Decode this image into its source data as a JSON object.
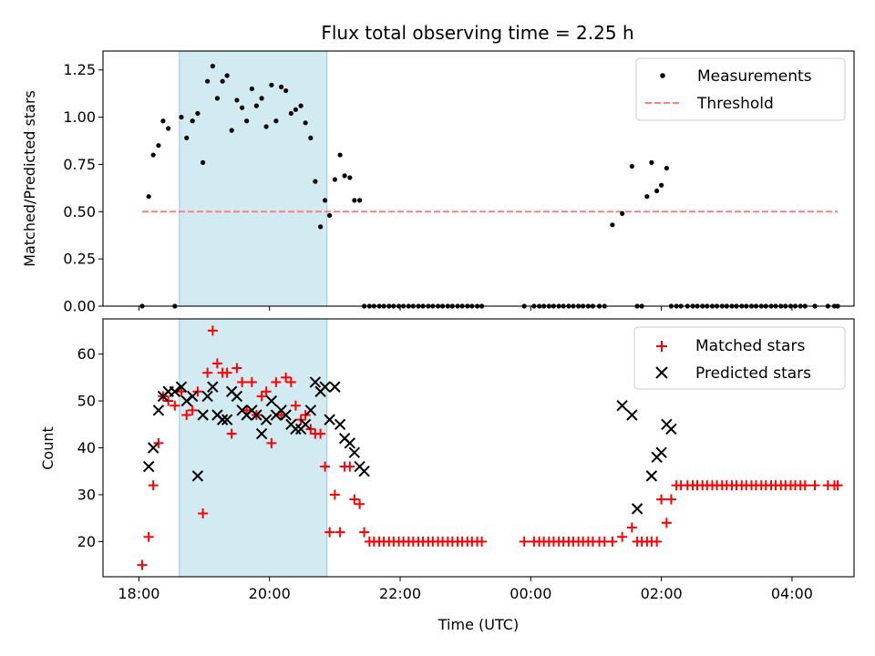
{
  "chart_data": [
    {
      "type": "scatter",
      "title": "Flux total observing time = 2.25 h",
      "xlabel": "",
      "ylabel": "Matched/Predicted stars",
      "x_unit": "hours since 18:00 UTC",
      "xlim": [
        -0.55,
        10.95
      ],
      "ylim": [
        0.0,
        1.35
      ],
      "yticks": [
        0.0,
        0.25,
        0.5,
        0.75,
        1.0,
        1.25
      ],
      "ytick_labels": [
        "0.00",
        "0.25",
        "0.50",
        "0.75",
        "1.00",
        "1.25"
      ],
      "highlight_span": {
        "x0": 0.62,
        "x1": 2.88,
        "color": "#add8e6"
      },
      "legend_position": "top-right",
      "legend": [
        "Measurements",
        "Threshold"
      ],
      "series": [
        {
          "name": "Measurements",
          "color": "#000000",
          "marker": "dot",
          "x": [
            0.05,
            0.15,
            0.22,
            0.3,
            0.37,
            0.45,
            0.55,
            0.65,
            0.73,
            0.82,
            0.9,
            0.98,
            1.05,
            1.13,
            1.2,
            1.28,
            1.35,
            1.42,
            1.5,
            1.58,
            1.65,
            1.73,
            1.8,
            1.88,
            1.95,
            2.03,
            2.1,
            2.18,
            2.25,
            2.33,
            2.4,
            2.48,
            2.55,
            2.63,
            2.7,
            2.78,
            2.85,
            2.92,
            3.0,
            3.08,
            3.15,
            3.23,
            3.3,
            3.38,
            3.45,
            3.53,
            3.6,
            3.68,
            3.75,
            3.83,
            3.9,
            3.98,
            4.05,
            4.13,
            4.2,
            4.28,
            4.35,
            4.43,
            4.5,
            4.58,
            4.65,
            4.73,
            4.8,
            4.88,
            4.95,
            5.03,
            5.1,
            5.18,
            5.25,
            5.9,
            6.05,
            6.13,
            6.2,
            6.28,
            6.35,
            6.43,
            6.5,
            6.58,
            6.65,
            6.73,
            6.8,
            6.88,
            6.95,
            7.05,
            7.13,
            7.25,
            7.4,
            7.55,
            7.63,
            7.7,
            7.78,
            7.85,
            7.93,
            8.0,
            8.08,
            8.15,
            8.23,
            8.3,
            8.4,
            8.48,
            8.55,
            8.63,
            8.7,
            8.78,
            8.85,
            8.93,
            9.0,
            9.08,
            9.15,
            9.23,
            9.3,
            9.38,
            9.45,
            9.53,
            9.6,
            9.68,
            9.75,
            9.83,
            9.9,
            9.98,
            10.05,
            10.13,
            10.2,
            10.35,
            10.55,
            10.65,
            10.7
          ],
          "y": [
            0.0,
            0.58,
            0.8,
            0.85,
            0.98,
            0.94,
            0.0,
            1.0,
            0.89,
            0.98,
            1.02,
            0.76,
            1.19,
            1.27,
            1.1,
            1.19,
            1.22,
            0.93,
            1.09,
            1.05,
            0.98,
            1.15,
            1.06,
            1.1,
            0.95,
            1.17,
            0.98,
            1.16,
            1.14,
            1.02,
            1.04,
            1.06,
            0.97,
            0.89,
            0.66,
            0.42,
            0.56,
            0.48,
            0.67,
            0.8,
            0.69,
            0.68,
            0.56,
            0.56,
            0.0,
            0.0,
            0.0,
            0.0,
            0.0,
            0.0,
            0.0,
            0.0,
            0.0,
            0.0,
            0.0,
            0.0,
            0.0,
            0.0,
            0.0,
            0.0,
            0.0,
            0.0,
            0.0,
            0.0,
            0.0,
            0.0,
            0.0,
            0.0,
            0.0,
            0.0,
            0.0,
            0.0,
            0.0,
            0.0,
            0.0,
            0.0,
            0.0,
            0.0,
            0.0,
            0.0,
            0.0,
            0.0,
            0.0,
            0.0,
            0.0,
            0.43,
            0.49,
            0.74,
            0.0,
            0.0,
            0.58,
            0.76,
            0.61,
            0.64,
            0.73,
            0.0,
            0.0,
            0.0,
            0.0,
            0.0,
            0.0,
            0.0,
            0.0,
            0.0,
            0.0,
            0.0,
            0.0,
            0.0,
            0.0,
            0.0,
            0.0,
            0.0,
            0.0,
            0.0,
            0.0,
            0.0,
            0.0,
            0.0,
            0.0,
            0.0,
            0.0,
            0.0,
            0.0,
            0.0,
            0.0,
            0.0,
            0.0
          ]
        },
        {
          "name": "Threshold",
          "color": "#ff7f7f",
          "style": "dashed",
          "x": [
            0.05,
            10.7
          ],
          "y": [
            0.5,
            0.5
          ]
        }
      ]
    },
    {
      "type": "scatter",
      "title": "",
      "xlabel": "Time (UTC)",
      "ylabel": "Count",
      "x_unit": "hours since 18:00 UTC",
      "xlim": [
        -0.55,
        10.95
      ],
      "ylim": [
        12.5,
        67.5
      ],
      "yticks": [
        20,
        30,
        40,
        50,
        60
      ],
      "ytick_labels": [
        "20",
        "30",
        "40",
        "50",
        "60"
      ],
      "xticks": [
        0,
        2,
        4,
        6,
        8,
        10
      ],
      "xtick_labels": [
        "18:00",
        "20:00",
        "22:00",
        "00:00",
        "02:00",
        "04:00"
      ],
      "highlight_span": {
        "x0": 0.62,
        "x1": 2.88,
        "color": "#add8e6"
      },
      "legend_position": "top-right",
      "legend": [
        "Matched stars",
        "Predicted stars"
      ],
      "series": [
        {
          "name": "Matched stars",
          "color": "#ff0000",
          "marker": "plus",
          "x": [
            0.05,
            0.15,
            0.22,
            0.3,
            0.37,
            0.45,
            0.55,
            0.65,
            0.73,
            0.82,
            0.9,
            0.98,
            1.05,
            1.13,
            1.2,
            1.28,
            1.35,
            1.42,
            1.5,
            1.58,
            1.65,
            1.73,
            1.8,
            1.88,
            1.95,
            2.03,
            2.1,
            2.18,
            2.25,
            2.33,
            2.4,
            2.48,
            2.55,
            2.63,
            2.7,
            2.78,
            2.85,
            2.92,
            3.0,
            3.08,
            3.15,
            3.23,
            3.3,
            3.38,
            3.45,
            3.53,
            3.6,
            3.68,
            3.75,
            3.83,
            3.9,
            3.98,
            4.05,
            4.13,
            4.2,
            4.28,
            4.35,
            4.43,
            4.5,
            4.58,
            4.65,
            4.73,
            4.8,
            4.88,
            4.95,
            5.03,
            5.1,
            5.18,
            5.25,
            5.9,
            6.05,
            6.13,
            6.2,
            6.28,
            6.35,
            6.43,
            6.5,
            6.58,
            6.65,
            6.73,
            6.8,
            6.88,
            6.95,
            7.05,
            7.13,
            7.25,
            7.4,
            7.55,
            7.63,
            7.7,
            7.78,
            7.85,
            7.93,
            8.0,
            8.08,
            8.15,
            8.23,
            8.3,
            8.4,
            8.48,
            8.55,
            8.63,
            8.7,
            8.78,
            8.85,
            8.93,
            9.0,
            9.08,
            9.15,
            9.23,
            9.3,
            9.38,
            9.45,
            9.53,
            9.6,
            9.68,
            9.75,
            9.83,
            9.9,
            9.98,
            10.05,
            10.13,
            10.2,
            10.35,
            10.55,
            10.65,
            10.7
          ],
          "y": [
            15,
            21,
            32,
            41,
            51,
            50,
            49,
            52,
            47,
            48,
            52,
            26,
            56,
            65,
            58,
            56,
            56,
            43,
            57,
            54,
            48,
            54,
            47,
            51,
            52,
            41,
            54,
            47,
            55,
            54,
            49,
            46,
            47,
            44,
            43,
            43,
            36,
            22,
            30,
            22,
            36,
            36,
            29,
            28,
            22,
            20,
            20,
            20,
            20,
            20,
            20,
            20,
            20,
            20,
            20,
            20,
            20,
            20,
            20,
            20,
            20,
            20,
            20,
            20,
            20,
            20,
            20,
            20,
            20,
            20,
            20,
            20,
            20,
            20,
            20,
            20,
            20,
            20,
            20,
            20,
            20,
            20,
            20,
            20,
            20,
            20,
            21,
            23,
            20,
            20,
            20,
            20,
            20,
            29,
            24,
            29,
            32,
            32,
            32,
            32,
            32,
            32,
            32,
            32,
            32,
            32,
            32,
            32,
            32,
            32,
            32,
            32,
            32,
            32,
            32,
            32,
            32,
            32,
            32,
            32,
            32,
            32,
            32,
            32,
            32,
            32,
            32
          ]
        },
        {
          "name": "Predicted stars",
          "color": "#000000",
          "marker": "x",
          "x": [
            0.15,
            0.22,
            0.3,
            0.37,
            0.45,
            0.55,
            0.65,
            0.73,
            0.82,
            0.9,
            0.98,
            1.05,
            1.13,
            1.2,
            1.28,
            1.35,
            1.42,
            1.5,
            1.58,
            1.65,
            1.73,
            1.8,
            1.88,
            1.95,
            2.03,
            2.1,
            2.18,
            2.25,
            2.33,
            2.4,
            2.48,
            2.55,
            2.63,
            2.7,
            2.78,
            2.85,
            2.92,
            3.0,
            3.08,
            3.15,
            3.23,
            3.3,
            3.38,
            3.45,
            7.4,
            7.55,
            7.63,
            7.85,
            7.93,
            8.0,
            8.08,
            8.15
          ],
          "y": [
            36,
            40,
            48,
            51,
            52,
            52,
            53,
            50,
            51,
            34,
            47,
            51,
            53,
            47,
            46,
            46,
            52,
            51,
            48,
            47,
            48,
            47,
            43,
            46,
            50,
            47,
            48,
            47,
            45,
            44,
            44,
            45,
            48,
            54,
            52,
            53,
            46,
            53,
            45,
            42,
            41,
            39,
            36,
            35,
            49,
            47,
            27,
            34,
            38,
            39,
            45,
            44
          ]
        }
      ]
    }
  ]
}
